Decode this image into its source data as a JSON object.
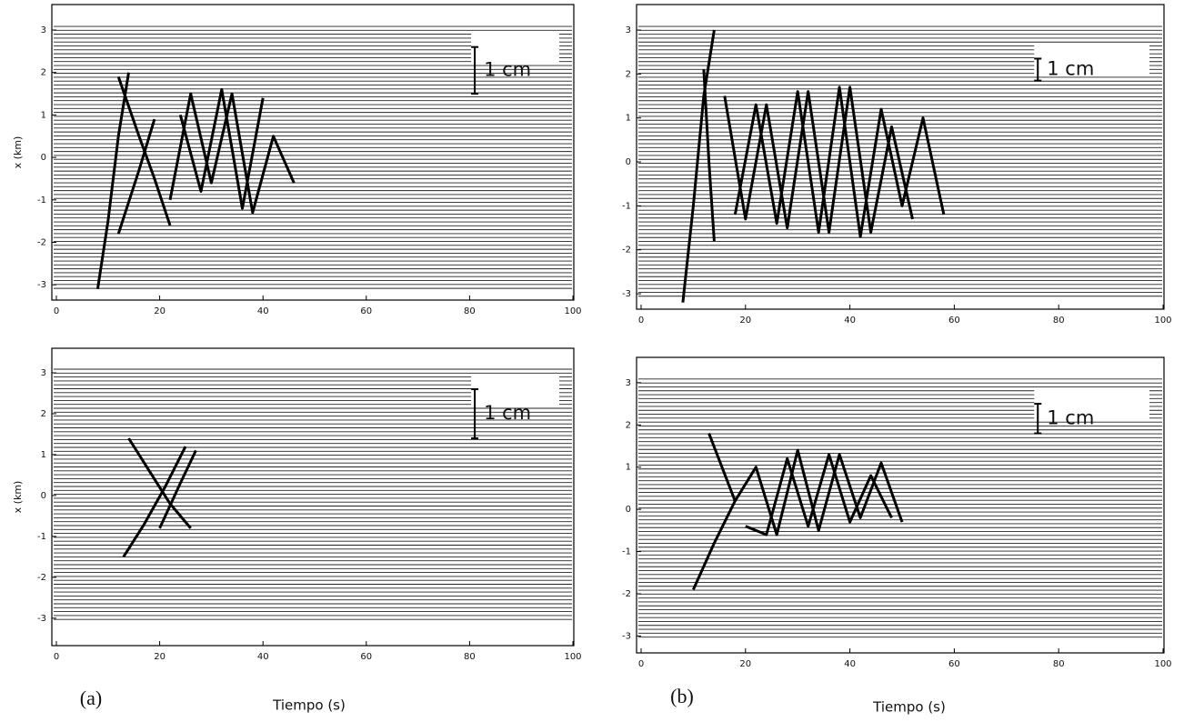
{
  "chart_data": [
    {
      "type": "line",
      "ylabel": "x (km)",
      "scale_label": "1 cm",
      "xlim": [
        0,
        100
      ],
      "xticks": [
        0,
        20,
        40,
        60,
        80,
        100
      ],
      "ylim": [
        -3.36,
        3.6
      ],
      "yticks": [
        -3,
        -2,
        -1,
        0,
        1,
        2,
        3
      ],
      "series": [
        {
          "color": "#000000",
          "x": [
            8,
            10,
            12,
            14
          ],
          "values": [
            -3.1,
            -1.5,
            0.5,
            2.0
          ]
        },
        {
          "color": "#000000",
          "x": [
            12,
            16,
            19,
            22
          ],
          "values": [
            1.9,
            0.5,
            -0.5,
            -1.6
          ]
        },
        {
          "color": "#000000",
          "x": [
            12,
            16,
            19
          ],
          "values": [
            -1.8,
            -0.3,
            0.9
          ]
        },
        {
          "color": "#000000",
          "x": [
            22,
            26,
            30,
            34,
            38,
            42,
            46
          ],
          "values": [
            -1,
            1.5,
            -0.6,
            1.5,
            -1.3,
            0.5,
            -0.6
          ]
        },
        {
          "color": "#000000",
          "x": [
            24,
            28,
            32,
            36,
            40
          ],
          "values": [
            1,
            -0.8,
            1.6,
            -1.2,
            1.4
          ]
        }
      ]
    },
    {
      "type": "line",
      "scale_label": "1 cm",
      "xlim": [
        0,
        100
      ],
      "xticks": [
        0,
        20,
        40,
        60,
        80,
        100
      ],
      "ylim": [
        -3.35,
        3.58
      ],
      "yticks": [
        -3,
        -2,
        -1,
        0,
        1,
        2,
        3
      ],
      "series": [
        {
          "color": "#000000",
          "x": [
            8,
            10,
            12,
            14
          ],
          "values": [
            -3.2,
            -1,
            1.5,
            3.0
          ]
        },
        {
          "color": "#000000",
          "x": [
            12,
            13,
            14
          ],
          "values": [
            2.1,
            0,
            -1.8
          ]
        },
        {
          "color": "#000000",
          "x": [
            16,
            20,
            24,
            28,
            32,
            36,
            40,
            44,
            48,
            52
          ],
          "values": [
            1.5,
            -1.3,
            1.3,
            -1.5,
            1.6,
            -1.6,
            1.7,
            -1.6,
            0.8,
            -1.3
          ]
        },
        {
          "color": "#000000",
          "x": [
            18,
            22,
            26,
            30,
            34,
            38,
            42,
            46,
            50,
            54,
            58
          ],
          "values": [
            -1.2,
            1.3,
            -1.4,
            1.6,
            -1.6,
            1.7,
            -1.7,
            1.2,
            -1,
            1,
            -1.2
          ]
        }
      ]
    },
    {
      "type": "line",
      "ylabel": "x (km)",
      "scale_label": "1 cm",
      "panel_label": "(a)",
      "xlabel": "Tiempo (s)",
      "xlim": [
        0,
        100
      ],
      "xticks": [
        0,
        20,
        40,
        60,
        80,
        100
      ],
      "ylim": [
        -3.67,
        3.6
      ],
      "yticks": [
        -3,
        -2,
        -1,
        0,
        1,
        2,
        3
      ],
      "series": [
        {
          "color": "#000000",
          "x": [
            13,
            17,
            21,
            25
          ],
          "values": [
            -1.5,
            -0.7,
            0.2,
            1.2
          ]
        },
        {
          "color": "#000000",
          "x": [
            14,
            18,
            22,
            26
          ],
          "values": [
            1.4,
            0.6,
            -0.2,
            -0.8
          ]
        },
        {
          "color": "#000000",
          "x": [
            20,
            24,
            27
          ],
          "values": [
            -0.8,
            0.3,
            1.1
          ]
        }
      ]
    },
    {
      "type": "line",
      "scale_label": "1 cm",
      "panel_label": "(b)",
      "xlabel": "Tiempo (s)",
      "xlim": [
        0,
        100
      ],
      "xticks": [
        0,
        20,
        40,
        60,
        80,
        100
      ],
      "ylim": [
        -3.4,
        3.6
      ],
      "yticks": [
        -3,
        -2,
        -1,
        0,
        1,
        2,
        3
      ],
      "series": [
        {
          "color": "#000000",
          "x": [
            10,
            14,
            18
          ],
          "values": [
            -1.9,
            -0.8,
            0.2
          ]
        },
        {
          "color": "#000000",
          "x": [
            13,
            18
          ],
          "values": [
            1.8,
            0.2
          ]
        },
        {
          "color": "#000000",
          "x": [
            18,
            22,
            26,
            30,
            34,
            38,
            42,
            46,
            50
          ],
          "values": [
            0.2,
            1,
            -0.6,
            1.4,
            -0.5,
            1.3,
            -0.2,
            1.1,
            -0.3
          ]
        },
        {
          "color": "#000000",
          "x": [
            20,
            24,
            28,
            32,
            36,
            40,
            44,
            48
          ],
          "values": [
            -0.4,
            -0.6,
            1.2,
            -0.4,
            1.3,
            -0.3,
            0.8,
            -0.2
          ]
        }
      ]
    }
  ]
}
